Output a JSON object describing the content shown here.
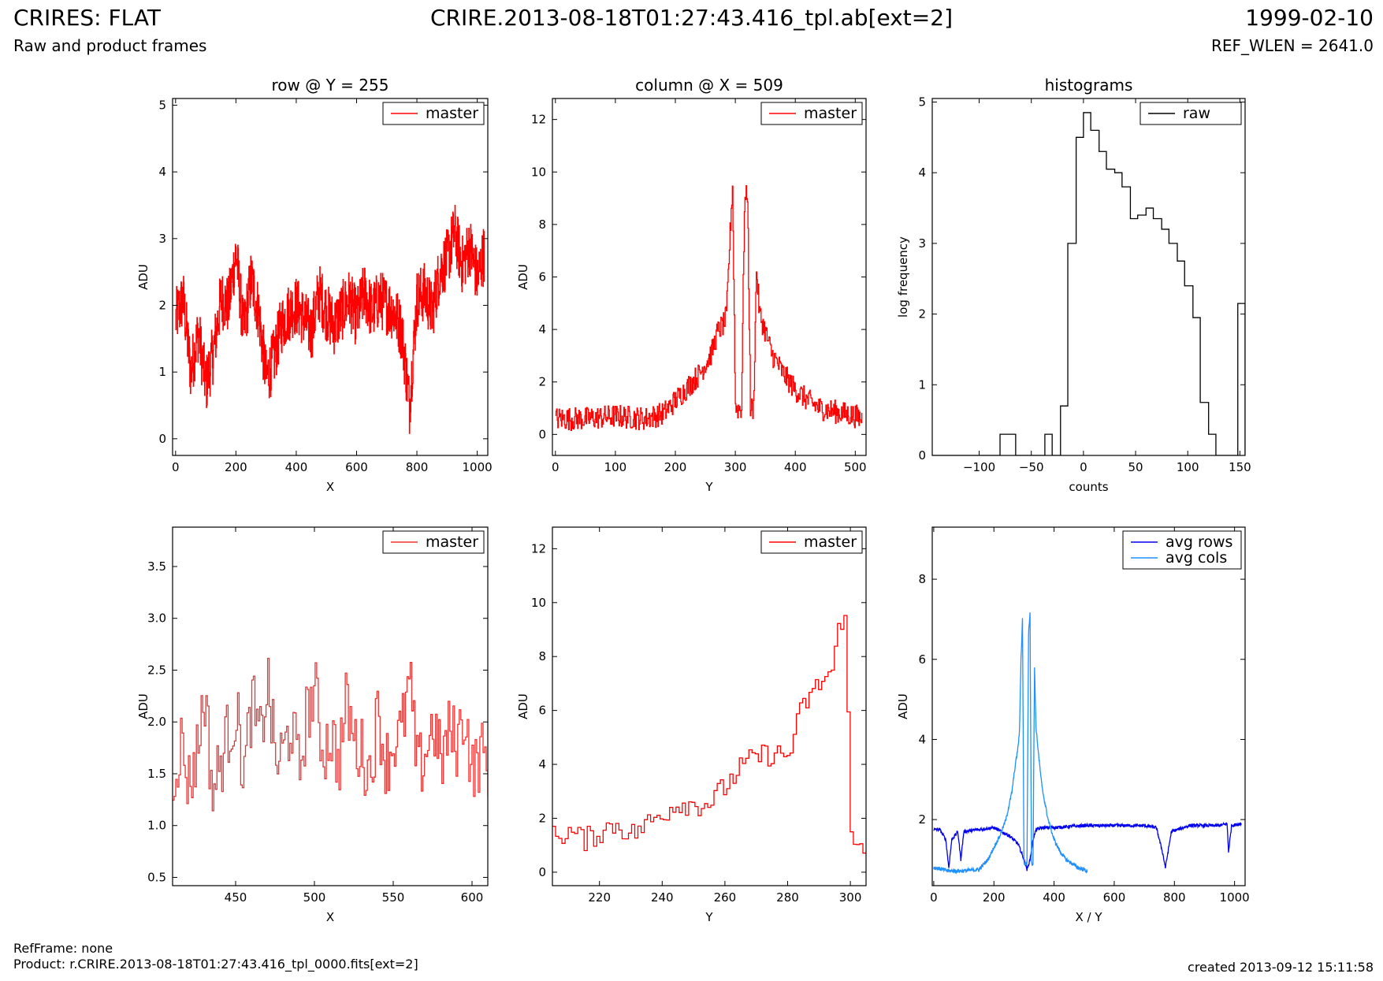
{
  "header": {
    "title": "CRIRES: FLAT",
    "subtitle": "Raw and product frames",
    "file": "CRIRE.2013-08-18T01:27:43.416_tpl.ab[ext=2]",
    "date": "1999-02-10",
    "ref_wlen": "REF_WLEN = 2641.0"
  },
  "footer": {
    "ref_frame": "RefFrame: none",
    "product": "Product: r.CRIRE.2013-08-18T01:27:43.416_tpl_0000.fits[ext=2]",
    "created": "created 2013-09-12 15:11:58"
  },
  "colors": {
    "master": "#ff0000",
    "master_zoom": "#ee3333",
    "raw": "#000000",
    "avg_rows": "#0000ee",
    "avg_cols": "#1e90ff"
  },
  "chart_data": [
    {
      "type": "line",
      "title": "row @ Y = 255",
      "xlabel": "X",
      "ylabel": "ADU",
      "xlim": [
        -10,
        1035
      ],
      "ylim": [
        -0.25,
        5.1
      ],
      "xticks": [
        0,
        200,
        400,
        600,
        800,
        1000
      ],
      "yticks": [
        0,
        1,
        2,
        3,
        4,
        5
      ],
      "series": [
        {
          "name": "master",
          "color": "#ff0000",
          "step": true,
          "x": [
            0,
            25,
            50,
            75,
            100,
            125,
            150,
            175,
            200,
            225,
            250,
            275,
            300,
            325,
            350,
            375,
            400,
            425,
            450,
            475,
            500,
            525,
            550,
            575,
            600,
            625,
            650,
            675,
            700,
            725,
            750,
            775,
            800,
            825,
            850,
            875,
            900,
            925,
            950,
            975,
            1000,
            1023
          ],
          "y": [
            1.8,
            2.1,
            1.0,
            1.6,
            0.8,
            1.3,
            2.1,
            2.0,
            2.8,
            1.6,
            2.4,
            1.9,
            0.9,
            1.2,
            1.7,
            1.9,
            2.0,
            1.8,
            1.6,
            2.2,
            1.9,
            1.7,
            1.9,
            2.1,
            1.8,
            2.2,
            1.9,
            2.1,
            2.0,
            1.9,
            1.6,
            0.5,
            2.1,
            2.2,
            1.9,
            2.5,
            2.7,
            3.1,
            2.6,
            2.9,
            2.4,
            2.8
          ],
          "noise": 0.45,
          "points": 1024
        }
      ],
      "legend": "top-right"
    },
    {
      "type": "line",
      "title": "column @ X = 509",
      "xlabel": "Y",
      "ylabel": "ADU",
      "xlim": [
        -5,
        518
      ],
      "ylim": [
        -0.8,
        12.8
      ],
      "xticks": [
        0,
        100,
        200,
        300,
        400,
        500
      ],
      "yticks": [
        0,
        2,
        4,
        6,
        8,
        10,
        12
      ],
      "series": [
        {
          "name": "master",
          "color": "#ff0000",
          "step": true,
          "x": [
            0,
            50,
            100,
            150,
            180,
            200,
            220,
            240,
            260,
            270,
            280,
            285,
            290,
            295,
            300,
            305,
            310,
            315,
            320,
            325,
            330,
            335,
            340,
            350,
            360,
            380,
            400,
            420,
            440,
            460,
            480,
            500,
            511
          ],
          "y": [
            0.6,
            0.6,
            0.7,
            0.6,
            0.8,
            1.3,
            1.8,
            2.3,
            3.1,
            3.9,
            4.2,
            4.5,
            7.2,
            9.5,
            1.0,
            1.0,
            1.0,
            8.8,
            9.2,
            1.0,
            1.0,
            6.3,
            4.6,
            3.9,
            3.1,
            2.3,
            1.7,
            1.3,
            1.0,
            0.9,
            0.8,
            0.7,
            0.6
          ],
          "noise": 0.45,
          "points": 512
        }
      ],
      "legend": "top-right"
    },
    {
      "type": "step",
      "title": "histograms",
      "xlabel": "counts",
      "ylabel": "log frequency",
      "xlim": [
        -145,
        155
      ],
      "ylim": [
        0,
        5.05
      ],
      "xticks": [
        -100,
        -50,
        0,
        50,
        100,
        150
      ],
      "yticks": [
        0,
        1,
        2,
        3,
        4,
        5
      ],
      "series": [
        {
          "name": "raw",
          "color": "#000000",
          "edges": [
            -145,
            -80,
            -65,
            -45,
            -37,
            -30,
            -22,
            -15,
            -7,
            0,
            7,
            15,
            22,
            30,
            37,
            45,
            52,
            60,
            67,
            75,
            82,
            90,
            97,
            105,
            112,
            120,
            127,
            148,
            155
          ],
          "y": [
            0,
            0.3,
            0,
            0,
            0.3,
            0,
            0.7,
            3.0,
            4.5,
            4.85,
            4.6,
            4.3,
            4.05,
            4.0,
            3.8,
            3.35,
            3.4,
            3.5,
            3.35,
            3.2,
            3.0,
            2.75,
            2.4,
            1.95,
            0.75,
            0.3,
            0,
            2.15
          ]
        }
      ],
      "legend": "top-right"
    },
    {
      "type": "line",
      "xlabel": "X",
      "ylabel": "ADU",
      "xlim": [
        410,
        610
      ],
      "ylim": [
        0.42,
        3.88
      ],
      "xticks": [
        450,
        500,
        550,
        600
      ],
      "yticks": [
        0.5,
        1.0,
        1.5,
        2.0,
        2.5,
        3.0,
        3.5
      ],
      "series": [
        {
          "name": "master",
          "color": "#ee3333",
          "step": true,
          "x": [
            410,
            415,
            420,
            425,
            430,
            435,
            440,
            445,
            450,
            455,
            460,
            465,
            470,
            475,
            480,
            485,
            490,
            495,
            500,
            505,
            510,
            515,
            520,
            525,
            530,
            535,
            540,
            545,
            550,
            555,
            560,
            565,
            570,
            575,
            580,
            585,
            590,
            595,
            600,
            605,
            610
          ],
          "y": [
            1.5,
            1.8,
            1.4,
            1.7,
            2.3,
            1.3,
            1.6,
            1.9,
            2.1,
            1.5,
            2.2,
            1.8,
            2.4,
            1.6,
            1.7,
            2.0,
            1.5,
            2.1,
            2.3,
            1.7,
            1.9,
            1.6,
            2.2,
            1.8,
            1.7,
            1.5,
            2.1,
            1.6,
            1.8,
            1.9,
            2.4,
            1.5,
            1.7,
            2.0,
            1.6,
            1.9,
            1.8,
            2.1,
            1.5,
            1.7,
            1.6
          ],
          "noise": 0.35,
          "points": 200
        }
      ],
      "legend": "top-right"
    },
    {
      "type": "line",
      "xlabel": "Y",
      "ylabel": "ADU",
      "xlim": [
        205,
        305
      ],
      "ylim": [
        -0.5,
        12.8
      ],
      "xticks": [
        220,
        240,
        260,
        280,
        300
      ],
      "yticks": [
        0,
        2,
        4,
        6,
        8,
        10,
        12
      ],
      "series": [
        {
          "name": "master",
          "color": "#ff0000",
          "step": true,
          "x": [
            205,
            210,
            215,
            220,
            225,
            230,
            235,
            240,
            245,
            250,
            255,
            260,
            265,
            270,
            275,
            280,
            284,
            286,
            290,
            294,
            296,
            298,
            300,
            302,
            305
          ],
          "y": [
            1.3,
            1.5,
            1.2,
            1.5,
            1.8,
            1.4,
            1.8,
            2.2,
            2.6,
            2.5,
            2.6,
            3.2,
            3.9,
            4.3,
            4.4,
            4.3,
            6.0,
            6.4,
            7.0,
            7.5,
            9.0,
            9.9,
            1.0,
            1.0,
            1.0
          ],
          "noise": 0.45,
          "points": 100
        }
      ],
      "legend": "top-right"
    },
    {
      "type": "line",
      "xlabel": "X / Y",
      "ylabel": "ADU",
      "xlim": [
        -5,
        1035
      ],
      "ylim": [
        0.35,
        9.3
      ],
      "xticks": [
        0,
        200,
        400,
        600,
        800,
        1000
      ],
      "yticks": [
        2,
        4,
        6,
        8
      ],
      "series": [
        {
          "name": "avg rows",
          "color": "#0000ee",
          "x": [
            0,
            20,
            40,
            50,
            60,
            80,
            90,
            100,
            150,
            200,
            250,
            280,
            300,
            310,
            320,
            330,
            340,
            360,
            400,
            500,
            600,
            700,
            740,
            760,
            770,
            790,
            850,
            900,
            950,
            975,
            980,
            990,
            1023
          ],
          "y": [
            1.75,
            1.75,
            1.5,
            0.8,
            1.5,
            1.7,
            1.0,
            1.7,
            1.75,
            1.8,
            1.6,
            1.4,
            1.0,
            0.75,
            1.0,
            1.5,
            1.75,
            1.8,
            1.8,
            1.85,
            1.85,
            1.85,
            1.8,
            1.2,
            0.8,
            1.7,
            1.85,
            1.85,
            1.85,
            1.9,
            1.2,
            1.85,
            1.9
          ],
          "noise": 0.04,
          "points": 1024
        },
        {
          "name": "avg cols",
          "color": "#1e90ff",
          "x": [
            0,
            50,
            100,
            150,
            180,
            200,
            220,
            240,
            260,
            270,
            280,
            285,
            290,
            295,
            300,
            305,
            310,
            315,
            320,
            325,
            330,
            335,
            340,
            350,
            360,
            380,
            400,
            420,
            440,
            460,
            480,
            500,
            511
          ],
          "y": [
            0.8,
            0.72,
            0.72,
            0.75,
            1.0,
            1.3,
            1.6,
            2.0,
            2.7,
            3.3,
            3.8,
            4.2,
            6.0,
            7.0,
            0.9,
            0.9,
            0.9,
            6.6,
            7.2,
            0.9,
            0.9,
            5.8,
            4.3,
            3.5,
            2.8,
            2.0,
            1.5,
            1.2,
            1.0,
            0.9,
            0.8,
            0.75,
            0.7
          ],
          "noise": 0.05,
          "points": 512
        }
      ],
      "legend": "top-right"
    }
  ]
}
